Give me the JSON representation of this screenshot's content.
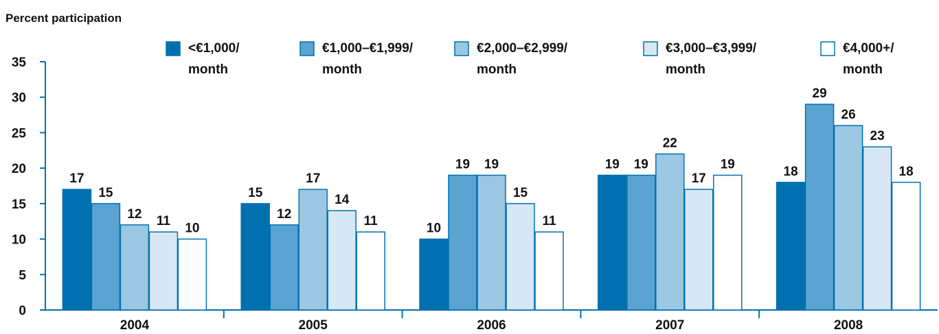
{
  "chart_data": {
    "type": "bar",
    "title": "Percent participation",
    "categories": [
      "2004",
      "2005",
      "2006",
      "2007",
      "2008"
    ],
    "series": [
      {
        "name": "<€1,000/\nmonth",
        "color": "#0070b0",
        "values": [
          17,
          15,
          10,
          19,
          18
        ]
      },
      {
        "name": "€1,000–€1,999/\nmonth",
        "color": "#5ba3d0",
        "values": [
          15,
          12,
          19,
          19,
          29
        ]
      },
      {
        "name": "€2,000–€2,999/\nmonth",
        "color": "#9cc7e2",
        "values": [
          12,
          17,
          19,
          22,
          26
        ]
      },
      {
        "name": "€3,000–€3,999/\nmonth",
        "color": "#d7e8f4",
        "values": [
          11,
          14,
          15,
          17,
          23
        ]
      },
      {
        "name": "€4,000+/\nmonth",
        "color": "#ffffff",
        "values": [
          10,
          11,
          11,
          19,
          18
        ]
      }
    ],
    "ylim": [
      0,
      35
    ],
    "yticks": [
      0,
      5,
      10,
      15,
      20,
      25,
      30,
      35
    ]
  }
}
